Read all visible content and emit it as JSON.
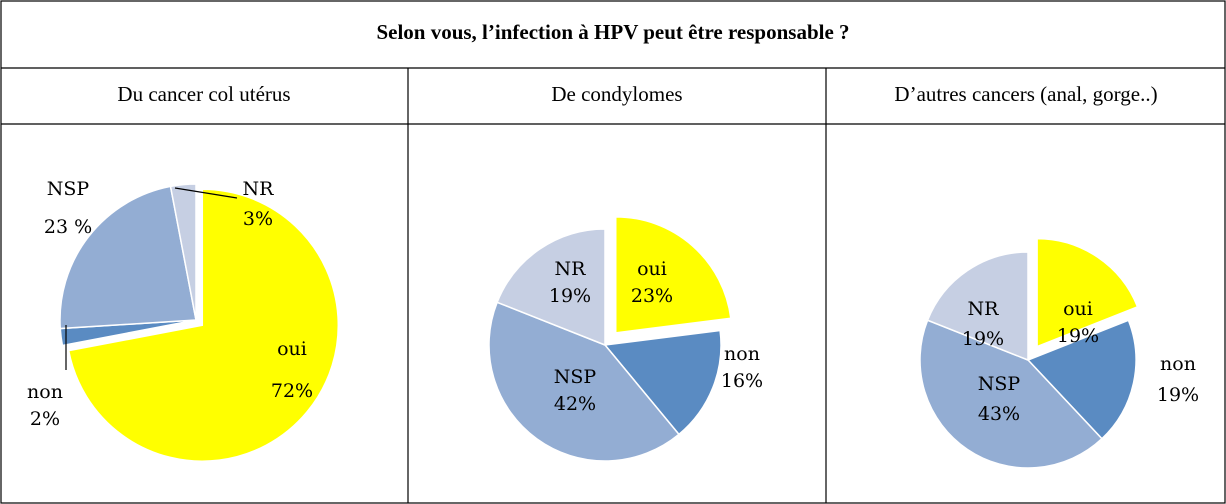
{
  "title": "Selon vous, l’infection à HPV peut être responsable ?",
  "chart_data": [
    {
      "type": "pie",
      "title": "Du cancer col utérus",
      "categories": [
        "oui",
        "non",
        "NSP",
        "NR"
      ],
      "values": [
        72,
        2,
        23,
        3
      ],
      "value_labels": [
        "72%",
        "2%",
        "23 %",
        "3%"
      ],
      "colors": [
        "#ffff00",
        "#5a8bc2",
        "#93add3",
        "#c6cfe3"
      ],
      "explode": [
        0.06,
        0,
        0,
        0
      ]
    },
    {
      "type": "pie",
      "title": "De  condylomes",
      "categories": [
        "oui",
        "non",
        "NSP",
        "NR"
      ],
      "values": [
        23,
        16,
        42,
        19
      ],
      "value_labels": [
        "23%",
        "16%",
        "42%",
        "19%"
      ],
      "colors": [
        "#ffff00",
        "#5a8bc2",
        "#93add3",
        "#c6cfe3"
      ],
      "explode": [
        0.14,
        0,
        0,
        0
      ]
    },
    {
      "type": "pie",
      "title": "D’autres cancers (anal, gorge..)",
      "categories": [
        "oui",
        "non",
        "NSP",
        "NR"
      ],
      "values": [
        19,
        19,
        43,
        19
      ],
      "value_labels": [
        "19%",
        "19%",
        "43%",
        "19%"
      ],
      "colors": [
        "#ffff00",
        "#5a8bc2",
        "#93add3",
        "#c6cfe3"
      ],
      "explode": [
        0.15,
        0,
        0,
        0
      ]
    }
  ]
}
